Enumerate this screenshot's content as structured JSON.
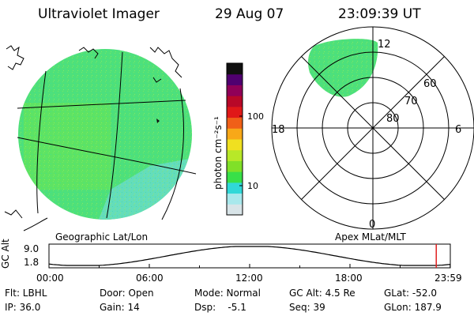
{
  "header": {
    "instrument": "Ultraviolet Imager",
    "date": "29 Aug 07",
    "time": "23:09:39 UT"
  },
  "colorbar": {
    "unit_label": "photon cm⁻²s⁻¹",
    "ticks": [
      "100",
      "10"
    ],
    "colors": [
      "#d8e4e8",
      "#a8e8ec",
      "#30d8d8",
      "#38e048",
      "#80e028",
      "#b8e828",
      "#f0e020",
      "#f8a818",
      "#f06018",
      "#e01818",
      "#b80828",
      "#900058",
      "#500070",
      "#101010"
    ]
  },
  "geo_panel": {
    "label": "Geographic Lat/Lon",
    "fill_colors": {
      "main": "#4ee07a",
      "bright": "#7ce83c",
      "dim": "#6adccc"
    }
  },
  "polar_panel": {
    "label": "Apex MLat/MLT",
    "mlt_labels": {
      "top": "12",
      "left": "18",
      "right": "6",
      "bottom": "0"
    },
    "mlat_labels": [
      "60",
      "70",
      "80"
    ]
  },
  "alt_plot": {
    "ylabel": "GC Alt",
    "y_ticks": [
      "9.0",
      "1.8"
    ],
    "x_ticks": [
      "00:00",
      "06:00",
      "12:00",
      "18:00",
      "23:59"
    ],
    "current_marker_hours": 23.16,
    "marker_color": "#e02020"
  },
  "info": {
    "row1": {
      "filter": "Flt: LBHL",
      "door": "Door: Open",
      "mode": "Mode: Normal",
      "gc_alt": "GC Alt: 4.5 Re",
      "glat": "GLat: -52.0"
    },
    "row2": {
      "ip": "IP: 36.0",
      "gain": "Gain: 14",
      "dsp": "Dsp:    -5.1",
      "seq": "Seq: 39",
      "glon": "GLon: 187.9"
    }
  }
}
